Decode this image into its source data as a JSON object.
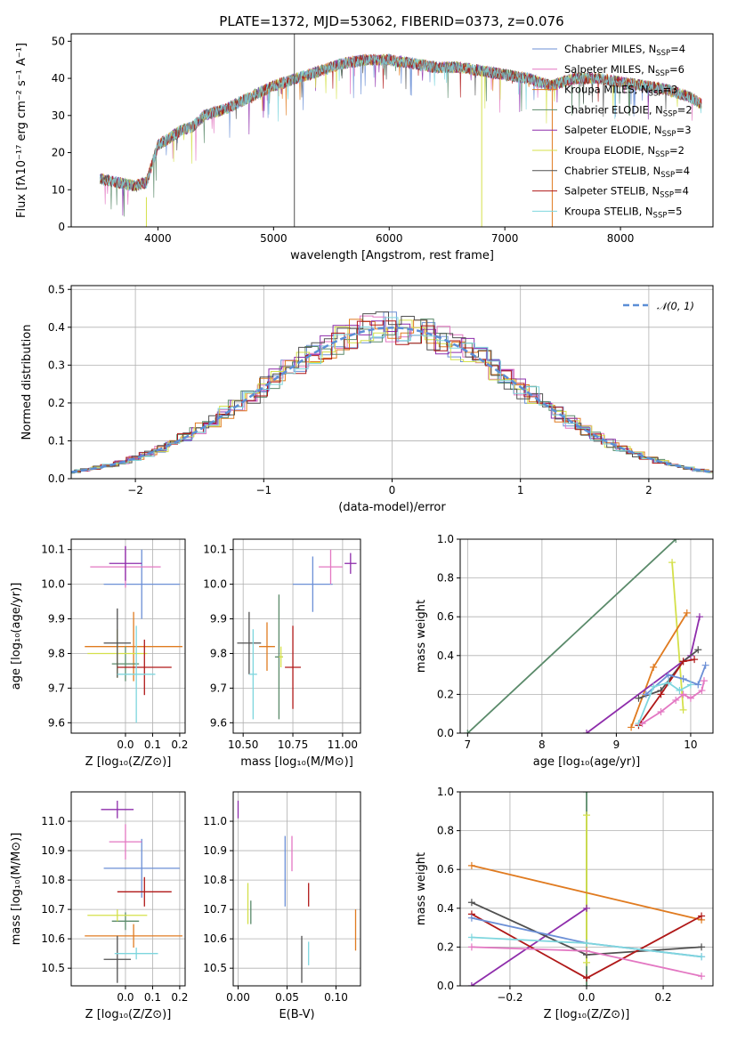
{
  "figure": {
    "title": "PLATE=1372, MJD=53062, FIBERID=0373, z=0.076"
  },
  "colors": {
    "chabrier_miles": "#6b8fd6",
    "salpeter_miles": "#e377c2",
    "kroupa_miles": "#e07b20",
    "chabrier_elodie": "#5a8a6a",
    "salpeter_elodie": "#8e2dab",
    "kroupa_elodie": "#d4e04a",
    "chabrier_stelib": "#505050",
    "salpeter_stelib": "#b01818",
    "kroupa_stelib": "#7ed6de",
    "normal": "#5b8ed6"
  },
  "chart_data": [
    {
      "id": "spectrum",
      "type": "line",
      "title": "PLATE=1372, MJD=53062, FIBERID=0373, z=0.076",
      "xlabel": "wavelength [Angstrom, rest frame]",
      "ylabel": "Flux [fλ10⁻¹⁷ erg cm⁻² s⁻¹ A⁻¹]",
      "xlim": [
        3250,
        8800
      ],
      "ylim": [
        0,
        52
      ],
      "xticks": [
        4000,
        5000,
        6000,
        7000,
        8000
      ],
      "yticks": [
        0,
        10,
        20,
        30,
        40,
        50
      ],
      "grid": false,
      "legend_position": "top-right",
      "continuum": {
        "x": [
          3500,
          3650,
          3800,
          3900,
          4000,
          4100,
          4200,
          4300,
          4400,
          4600,
          4800,
          5000,
          5200,
          5400,
          5600,
          5800,
          6000,
          6200,
          6400,
          6600,
          6800,
          7000,
          7200,
          7400,
          7600,
          7800,
          8000,
          8200,
          8400,
          8600,
          8700
        ],
        "y": [
          13,
          12,
          11,
          12,
          22,
          24,
          26,
          27,
          30,
          32,
          35,
          38,
          40,
          42,
          44,
          45,
          45,
          44,
          43,
          43,
          42,
          41,
          40,
          38,
          40,
          40,
          39,
          38,
          37,
          35,
          33
        ]
      },
      "series": [
        {
          "name": "Chabrier MILES, N_SSP=4",
          "legend": "Chabrier MILES, N",
          "nssp": "=4",
          "color_key": "chabrier_miles"
        },
        {
          "name": "Salpeter MILES, N_SSP=6",
          "legend": "Salpeter MILES, N",
          "nssp": "=6",
          "color_key": "salpeter_miles"
        },
        {
          "name": "Kroupa MILES, N_SSP=3",
          "legend": "Kroupa MILES, N",
          "nssp": "=3",
          "color_key": "kroupa_miles"
        },
        {
          "name": "Chabrier ELODIE, N_SSP=2",
          "legend": "Chabrier ELODIE, N",
          "nssp": "=2",
          "color_key": "chabrier_elodie"
        },
        {
          "name": "Salpeter ELODIE, N_SSP=3",
          "legend": "Salpeter ELODIE, N",
          "nssp": "=3",
          "color_key": "salpeter_elodie"
        },
        {
          "name": "Kroupa ELODIE, N_SSP=2",
          "legend": "Kroupa ELODIE, N",
          "nssp": "=2",
          "color_key": "kroupa_elodie"
        },
        {
          "name": "Chabrier STELIB, N_SSP=4",
          "legend": "Chabrier STELIB, N",
          "nssp": "=4",
          "color_key": "chabrier_stelib"
        },
        {
          "name": "Salpeter STELIB, N_SSP=4",
          "legend": "Salpeter STELIB, N",
          "nssp": "=4",
          "color_key": "salpeter_stelib"
        },
        {
          "name": "Kroupa STELIB, N_SSP=5",
          "legend": "Kroupa STELIB, N",
          "nssp": "=5",
          "color_key": "kroupa_stelib"
        }
      ],
      "spikes": [
        {
          "x": 3900,
          "y0": 0,
          "y1": 8,
          "color_key": "kroupa_elodie"
        },
        {
          "x": 5180,
          "y0": 0,
          "y1": 52,
          "color_key": "chabrier_stelib"
        },
        {
          "x": 6800,
          "y0": 0,
          "y1": 42,
          "color_key": "kroupa_elodie"
        },
        {
          "x": 7410,
          "y0": 0,
          "y1": 38,
          "color_key": "kroupa_miles"
        }
      ]
    },
    {
      "id": "residuals",
      "type": "histogram",
      "xlabel": "(data-model)/error",
      "ylabel": "Normed distribution",
      "xlim": [
        -2.5,
        2.5
      ],
      "ylim": [
        0,
        0.51
      ],
      "xticks": [
        -2,
        -1,
        0,
        1,
        2
      ],
      "yticks": [
        0.0,
        0.1,
        0.2,
        0.3,
        0.4,
        0.5
      ],
      "grid": true,
      "legend_position": "top-right",
      "normal_label": "𝒩(0, 1)",
      "normal_mean": 0,
      "normal_sigma": 1,
      "bin_width": 0.1
    },
    {
      "id": "age_vs_z",
      "type": "errorbar",
      "xlabel": "Z [log₁₀(Z/Z⊙)]",
      "ylabel": "age  [log₁₀(age/yr)]",
      "xlim": [
        -0.2,
        0.22
      ],
      "ylim": [
        9.57,
        10.13
      ],
      "xticks": [
        0.0,
        0.1,
        0.2
      ],
      "yticks": [
        9.6,
        9.7,
        9.8,
        9.9,
        10.0,
        10.1
      ],
      "grid": true,
      "points": [
        {
          "color_key": "chabrier_miles",
          "x": 0.06,
          "xerr": 0.14,
          "y": 10.0,
          "yerr": 0.1
        },
        {
          "color_key": "salpeter_miles",
          "x": 0.0,
          "xerr": 0.13,
          "y": 10.05,
          "yerr": 0.06
        },
        {
          "color_key": "kroupa_miles",
          "x": 0.03,
          "xerr": 0.18,
          "y": 9.82,
          "yerr": 0.1
        },
        {
          "color_key": "chabrier_elodie",
          "x": 0.0,
          "xerr": 0.05,
          "y": 9.77,
          "yerr": 0.05
        },
        {
          "color_key": "salpeter_elodie",
          "x": 0.0,
          "xerr": 0.06,
          "y": 10.06,
          "yerr": 0.05
        },
        {
          "color_key": "kroupa_elodie",
          "x": -0.03,
          "xerr": 0.11,
          "y": 9.8,
          "yerr": 0.07
        },
        {
          "color_key": "chabrier_stelib",
          "x": -0.03,
          "xerr": 0.05,
          "y": 9.83,
          "yerr": 0.1
        },
        {
          "color_key": "salpeter_stelib",
          "x": 0.07,
          "xerr": 0.1,
          "y": 9.76,
          "yerr": 0.08
        },
        {
          "color_key": "kroupa_stelib",
          "x": 0.04,
          "xerr": 0.07,
          "y": 9.74,
          "yerr": 0.14
        }
      ]
    },
    {
      "id": "age_vs_mass",
      "type": "errorbar",
      "xlabel": "mass [log₁₀(M/M⊙)]",
      "ylabel": "",
      "xlim": [
        10.45,
        11.09
      ],
      "ylim": [
        9.57,
        10.13
      ],
      "xticks": [
        10.5,
        10.75,
        11.0
      ],
      "yticks": [
        9.6,
        9.7,
        9.8,
        9.9,
        10.0,
        10.1
      ],
      "grid": true,
      "points": [
        {
          "color_key": "chabrier_miles",
          "x": 10.85,
          "xerr": 0.1,
          "y": 10.0,
          "yerr": 0.08
        },
        {
          "color_key": "salpeter_miles",
          "x": 10.94,
          "xerr": 0.06,
          "y": 10.05,
          "yerr": 0.05
        },
        {
          "color_key": "kroupa_miles",
          "x": 10.62,
          "xerr": 0.04,
          "y": 9.82,
          "yerr": 0.07
        },
        {
          "color_key": "chabrier_elodie",
          "x": 10.68,
          "xerr": 0.02,
          "y": 9.79,
          "yerr": 0.18
        },
        {
          "color_key": "salpeter_elodie",
          "x": 11.04,
          "xerr": 0.03,
          "y": 10.06,
          "yerr": 0.03
        },
        {
          "color_key": "kroupa_elodie",
          "x": 10.69,
          "xerr": 0.01,
          "y": 9.79,
          "yerr": 0.03
        },
        {
          "color_key": "chabrier_stelib",
          "x": 10.53,
          "xerr": 0.06,
          "y": 9.83,
          "yerr": 0.09
        },
        {
          "color_key": "salpeter_stelib",
          "x": 10.75,
          "xerr": 0.04,
          "y": 9.76,
          "yerr": 0.12
        },
        {
          "color_key": "kroupa_stelib",
          "x": 10.55,
          "xerr": 0.02,
          "y": 9.74,
          "yerr": 0.13
        }
      ]
    },
    {
      "id": "weight_vs_age",
      "type": "line",
      "xlabel": "age  [log₁₀(age/yr)]",
      "ylabel": "mass weight",
      "xlim": [
        6.9,
        10.3
      ],
      "ylim": [
        0,
        1
      ],
      "xticks": [
        7,
        8,
        9,
        10
      ],
      "yticks": [
        0.0,
        0.2,
        0.4,
        0.6,
        0.8,
        1.0
      ],
      "grid": true,
      "series": [
        {
          "color_key": "chabrier_elodie",
          "x": [
            7.0,
            9.8
          ],
          "y": [
            0.0,
            1.0
          ]
        },
        {
          "color_key": "kroupa_elodie",
          "x": [
            9.75,
            9.9
          ],
          "y": [
            0.88,
            0.12
          ]
        },
        {
          "color_key": "kroupa_miles",
          "x": [
            9.2,
            9.5,
            9.95
          ],
          "y": [
            0.03,
            0.34,
            0.62
          ]
        },
        {
          "color_key": "salpeter_elodie",
          "x": [
            8.6,
            10.0,
            10.12
          ],
          "y": [
            0.0,
            0.4,
            0.6
          ]
        },
        {
          "color_key": "chabrier_stelib",
          "x": [
            9.3,
            9.6,
            9.9,
            10.1
          ],
          "y": [
            0.18,
            0.22,
            0.37,
            0.43
          ]
        },
        {
          "color_key": "salpeter_stelib",
          "x": [
            9.3,
            9.6,
            9.9,
            10.05
          ],
          "y": [
            0.04,
            0.2,
            0.37,
            0.38
          ]
        },
        {
          "color_key": "chabrier_miles",
          "x": [
            9.4,
            9.7,
            9.9,
            10.1,
            10.2
          ],
          "y": [
            0.2,
            0.3,
            0.28,
            0.25,
            0.35
          ]
        },
        {
          "color_key": "kroupa_stelib",
          "x": [
            9.3,
            9.5,
            9.7,
            9.85,
            10.0
          ],
          "y": [
            0.05,
            0.24,
            0.26,
            0.22,
            0.25
          ]
        },
        {
          "color_key": "salpeter_miles",
          "x": [
            9.35,
            9.6,
            9.8,
            9.9,
            10.0,
            10.15,
            10.18
          ],
          "y": [
            0.05,
            0.11,
            0.17,
            0.2,
            0.18,
            0.22,
            0.27
          ]
        }
      ]
    },
    {
      "id": "mass_vs_z",
      "type": "errorbar",
      "xlabel": "Z [log₁₀(Z/Z⊙)]",
      "ylabel": "mass [log₁₀(M/M⊙)]",
      "xlim": [
        -0.2,
        0.22
      ],
      "ylim": [
        10.44,
        11.1
      ],
      "xticks": [
        0.0,
        0.1,
        0.2
      ],
      "yticks": [
        10.5,
        10.6,
        10.7,
        10.8,
        10.9,
        11.0
      ],
      "grid": true,
      "points": [
        {
          "color_key": "chabrier_miles",
          "x": 0.06,
          "xerr": 0.14,
          "y": 10.84,
          "yerr": 0.1
        },
        {
          "color_key": "salpeter_miles",
          "x": 0.0,
          "xerr": 0.06,
          "y": 10.93,
          "yerr": 0.06
        },
        {
          "color_key": "kroupa_miles",
          "x": 0.03,
          "xerr": 0.18,
          "y": 10.61,
          "yerr": 0.04
        },
        {
          "color_key": "chabrier_elodie",
          "x": 0.0,
          "xerr": 0.05,
          "y": 10.66,
          "yerr": 0.03
        },
        {
          "color_key": "salpeter_elodie",
          "x": -0.03,
          "xerr": 0.06,
          "y": 11.04,
          "yerr": 0.03
        },
        {
          "color_key": "kroupa_elodie",
          "x": -0.03,
          "xerr": 0.11,
          "y": 10.68,
          "yerr": 0.02
        },
        {
          "color_key": "chabrier_stelib",
          "x": -0.03,
          "xerr": 0.05,
          "y": 10.53,
          "yerr": 0.08
        },
        {
          "color_key": "salpeter_stelib",
          "x": 0.07,
          "xerr": 0.1,
          "y": 10.76,
          "yerr": 0.05
        },
        {
          "color_key": "kroupa_stelib",
          "x": 0.04,
          "xerr": 0.08,
          "y": 10.55,
          "yerr": 0.02
        }
      ]
    },
    {
      "id": "mass_vs_ebv",
      "type": "errorbar",
      "xlabel": "E(B-V)",
      "ylabel": "",
      "xlim": [
        -0.005,
        0.125
      ],
      "ylim": [
        10.44,
        11.1
      ],
      "xticks": [
        0.0,
        0.05,
        0.1
      ],
      "yticks": [
        10.5,
        10.6,
        10.7,
        10.8,
        10.9,
        11.0
      ],
      "grid": true,
      "points": [
        {
          "color_key": "chabrier_miles",
          "x": 0.048,
          "xerr": 0,
          "y": 10.83,
          "yerr": 0.12
        },
        {
          "color_key": "salpeter_miles",
          "x": 0.055,
          "xerr": 0,
          "y": 10.89,
          "yerr": 0.06
        },
        {
          "color_key": "kroupa_miles",
          "x": 0.12,
          "xerr": 0,
          "y": 10.63,
          "yerr": 0.07
        },
        {
          "color_key": "chabrier_elodie",
          "x": 0.013,
          "xerr": 0,
          "y": 10.69,
          "yerr": 0.04
        },
        {
          "color_key": "salpeter_elodie",
          "x": 0.0,
          "xerr": 0,
          "y": 11.04,
          "yerr": 0.03
        },
        {
          "color_key": "kroupa_elodie",
          "x": 0.01,
          "xerr": 0,
          "y": 10.72,
          "yerr": 0.07
        },
        {
          "color_key": "chabrier_stelib",
          "x": 0.065,
          "xerr": 0,
          "y": 10.53,
          "yerr": 0.08
        },
        {
          "color_key": "salpeter_stelib",
          "x": 0.072,
          "xerr": 0,
          "y": 10.75,
          "yerr": 0.04
        },
        {
          "color_key": "kroupa_stelib",
          "x": 0.072,
          "xerr": 0,
          "y": 10.55,
          "yerr": 0.04
        }
      ]
    },
    {
      "id": "weight_vs_z",
      "type": "line",
      "xlabel": "Z [log₁₀(Z/Z⊙)]",
      "ylabel": "mass weight",
      "xlim": [
        -0.33,
        0.33
      ],
      "ylim": [
        0,
        1
      ],
      "xticks": [
        -0.2,
        0.0,
        0.2
      ],
      "yticks": [
        0.0,
        0.2,
        0.4,
        0.6,
        0.8,
        1.0
      ],
      "grid": true,
      "series": [
        {
          "color_key": "chabrier_elodie",
          "x": [
            0.0,
            0.0
          ],
          "y": [
            0.0,
            1.0
          ]
        },
        {
          "color_key": "kroupa_elodie",
          "x": [
            0.0,
            0.0
          ],
          "y": [
            0.12,
            0.88
          ]
        },
        {
          "color_key": "kroupa_miles",
          "x": [
            -0.3,
            0.3
          ],
          "y": [
            0.62,
            0.34
          ]
        },
        {
          "color_key": "salpeter_elodie",
          "x": [
            -0.3,
            0.0
          ],
          "y": [
            0.0,
            0.4
          ]
        },
        {
          "color_key": "chabrier_stelib",
          "x": [
            -0.3,
            0.0,
            0.3
          ],
          "y": [
            0.43,
            0.16,
            0.2
          ]
        },
        {
          "color_key": "salpeter_stelib",
          "x": [
            -0.3,
            0.0,
            0.3
          ],
          "y": [
            0.37,
            0.04,
            0.36
          ]
        },
        {
          "color_key": "chabrier_miles",
          "x": [
            -0.3,
            0.0,
            0.3
          ],
          "y": [
            0.35,
            0.22,
            0.15
          ]
        },
        {
          "color_key": "kroupa_stelib",
          "x": [
            -0.3,
            0.0,
            0.3
          ],
          "y": [
            0.25,
            0.22,
            0.15
          ]
        },
        {
          "color_key": "salpeter_miles",
          "x": [
            -0.3,
            0.0,
            0.3
          ],
          "y": [
            0.2,
            0.18,
            0.05
          ]
        }
      ]
    }
  ]
}
